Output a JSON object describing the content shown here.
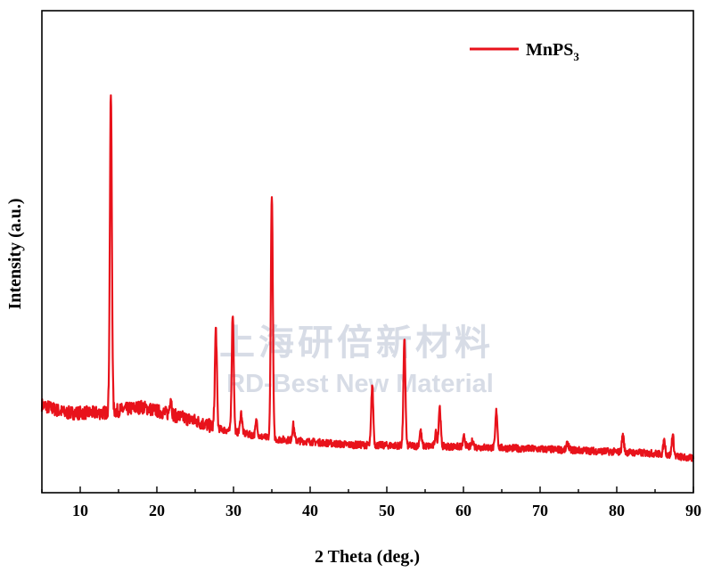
{
  "chart_data": {
    "type": "line",
    "xlabel": "2 Theta (deg.)",
    "ylabel": "Intensity (a.u.)",
    "xlim": [
      5,
      90
    ],
    "ylim": [
      0,
      100
    ],
    "xticks": [
      10,
      20,
      30,
      40,
      50,
      60,
      70,
      80,
      90
    ],
    "y_tick_labels": false,
    "grid": false,
    "legend_position": "top-right",
    "series": [
      {
        "name": "MnPS",
        "name_subscript": "3",
        "color": "#e8121b",
        "baseline": [
          [
            5,
            14
          ],
          [
            8,
            12
          ],
          [
            13,
            12
          ],
          [
            18,
            13.5
          ],
          [
            21,
            12
          ],
          [
            25,
            10
          ],
          [
            28,
            8
          ],
          [
            35,
            5.5
          ],
          [
            45,
            4
          ],
          [
            60,
            3.5
          ],
          [
            75,
            2.6
          ],
          [
            85,
            1.8
          ],
          [
            90,
            0.5
          ]
        ],
        "peaks": [
          {
            "x": 14.0,
            "y": 92
          },
          {
            "x": 21.8,
            "y": 16
          },
          {
            "x": 27.7,
            "y": 33
          },
          {
            "x": 29.9,
            "y": 37
          },
          {
            "x": 31.0,
            "y": 12
          },
          {
            "x": 33.0,
            "y": 10
          },
          {
            "x": 35.0,
            "y": 67
          },
          {
            "x": 37.8,
            "y": 9
          },
          {
            "x": 48.1,
            "y": 19
          },
          {
            "x": 52.3,
            "y": 30
          },
          {
            "x": 54.4,
            "y": 7.5
          },
          {
            "x": 56.4,
            "y": 7
          },
          {
            "x": 56.9,
            "y": 13.5
          },
          {
            "x": 60.1,
            "y": 6
          },
          {
            "x": 61.2,
            "y": 5
          },
          {
            "x": 64.3,
            "y": 12.5
          },
          {
            "x": 73.6,
            "y": 4.5
          },
          {
            "x": 80.8,
            "y": 6.5
          },
          {
            "x": 86.2,
            "y": 5
          },
          {
            "x": 87.3,
            "y": 6.5
          }
        ]
      }
    ]
  },
  "watermark": {
    "line1": "上海研倍新材料",
    "line2": "RD-Best New Material"
  }
}
